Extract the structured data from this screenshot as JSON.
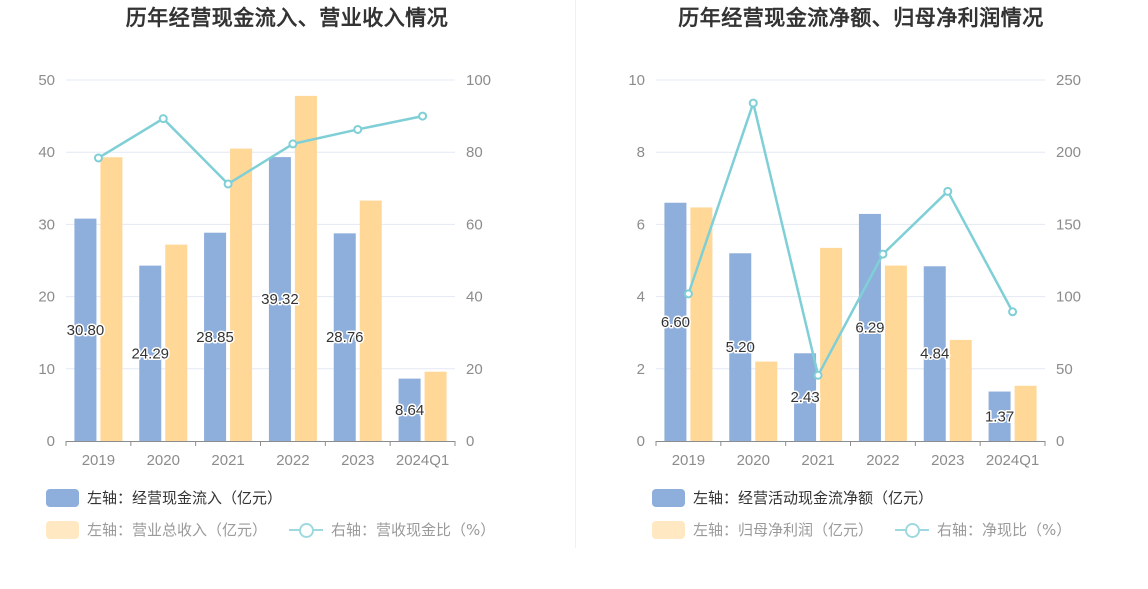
{
  "colors": {
    "bar_primary": "#8eaedc",
    "bar_secondary": "#ffd897",
    "line": "#7fcfd6",
    "legend_primary": "#8eaedc",
    "legend_secondary": "#ffe8c2",
    "legend_line": "#9ed9e0",
    "legend_text_active": "#333333",
    "legend_text_muted": "#9a9a9a"
  },
  "chart_data": [
    {
      "type": "bar",
      "title": "历年经营现金流入、营业收入情况",
      "categories": [
        "2019",
        "2020",
        "2021",
        "2022",
        "2023",
        "2024Q1"
      ],
      "y_left": {
        "min": 0,
        "max": 50,
        "ticks": [
          "0",
          "10",
          "20",
          "30",
          "40",
          "50"
        ]
      },
      "y_right": {
        "min": 0,
        "max": 100,
        "ticks": [
          "0",
          "20",
          "40",
          "60",
          "80",
          "100"
        ]
      },
      "grid": true,
      "legend_position": "bottom-left",
      "series": [
        {
          "name": "左轴：经营现金流入（亿元）",
          "type": "bar",
          "axis": "left",
          "values": [
            30.8,
            24.29,
            28.85,
            39.32,
            28.76,
            8.64
          ],
          "labels": [
            "30.80",
            "24.29",
            "28.85",
            "39.32",
            "28.76",
            "8.64"
          ]
        },
        {
          "name": "左轴：营业总收入（亿元）",
          "type": "bar",
          "axis": "left",
          "values": [
            39.3,
            27.2,
            40.5,
            47.8,
            33.3,
            9.6
          ]
        },
        {
          "name": "右轴：营收现金比（%）",
          "type": "line",
          "axis": "right",
          "values": [
            78.4,
            89.3,
            71.2,
            82.3,
            86.3,
            90.0
          ]
        }
      ]
    },
    {
      "type": "bar",
      "title": "历年经营现金流净额、归母净利润情况",
      "categories": [
        "2019",
        "2020",
        "2021",
        "2022",
        "2023",
        "2024Q1"
      ],
      "y_left": {
        "min": 0,
        "max": 10,
        "ticks": [
          "0",
          "2",
          "4",
          "6",
          "8",
          "10"
        ]
      },
      "y_right": {
        "min": 0,
        "max": 250,
        "ticks": [
          "0",
          "50",
          "100",
          "150",
          "200",
          "250"
        ]
      },
      "grid": true,
      "legend_position": "bottom-left",
      "series": [
        {
          "name": "左轴：经营活动现金流净额（亿元）",
          "type": "bar",
          "axis": "left",
          "values": [
            6.6,
            5.2,
            2.43,
            6.29,
            4.84,
            1.37
          ],
          "labels": [
            "6.60",
            "5.20",
            "2.43",
            "6.29",
            "4.84",
            "1.37"
          ]
        },
        {
          "name": "左轴：归母净利润（亿元）",
          "type": "bar",
          "axis": "left",
          "values": [
            6.47,
            2.2,
            5.35,
            4.86,
            2.8,
            1.53
          ]
        },
        {
          "name": "右轴：净现比（%）",
          "type": "line",
          "axis": "right",
          "values": [
            101.9,
            234.0,
            45.5,
            129.4,
            172.9,
            89.5
          ]
        }
      ]
    }
  ]
}
